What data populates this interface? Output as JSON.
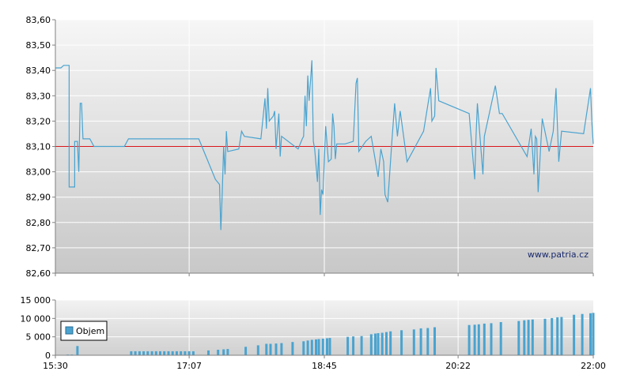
{
  "watermark": "www.patria.cz",
  "colors": {
    "price_line": "#4aa3cf",
    "reference_line": "#d9161b",
    "volume_bar": "#4aa3cf",
    "grid": "#ffffff",
    "plot_bg_top": "#f6f6f6",
    "plot_bg_bottom": "#c8c8c8"
  },
  "chart_data": [
    {
      "type": "line",
      "name": "price",
      "ylim": [
        82.6,
        83.6
      ],
      "y_ticks": [
        "82,60",
        "82,70",
        "82,80",
        "82,90",
        "83,00",
        "83,10",
        "83,20",
        "83,30",
        "83,40",
        "83,50",
        "83,60"
      ],
      "y_tick_values": [
        82.6,
        82.7,
        82.8,
        82.9,
        83.0,
        83.1,
        83.2,
        83.3,
        83.4,
        83.5,
        83.6
      ],
      "xlim_minutes": [
        930,
        1320
      ],
      "x_tick_minutes": [
        930,
        1027,
        1125,
        1222,
        1320
      ],
      "reference_value": 83.1,
      "grid": true,
      "points": [
        [
          930,
          83.41
        ],
        [
          934,
          83.41
        ],
        [
          936,
          83.42
        ],
        [
          940,
          83.42
        ],
        [
          940,
          82.94
        ],
        [
          944,
          82.94
        ],
        [
          944,
          83.12
        ],
        [
          946,
          83.12
        ],
        [
          947,
          83.0
        ],
        [
          948,
          83.27
        ],
        [
          949,
          83.27
        ],
        [
          950,
          83.13
        ],
        [
          955,
          83.13
        ],
        [
          958,
          83.1
        ],
        [
          980,
          83.1
        ],
        [
          983,
          83.13
        ],
        [
          1034,
          83.13
        ],
        [
          1046,
          82.97
        ],
        [
          1049,
          82.95
        ],
        [
          1050,
          82.77
        ],
        [
          1051,
          82.92
        ],
        [
          1052,
          83.1
        ],
        [
          1053,
          82.99
        ],
        [
          1054,
          83.16
        ],
        [
          1055,
          83.08
        ],
        [
          1063,
          83.09
        ],
        [
          1065,
          83.16
        ],
        [
          1067,
          83.14
        ],
        [
          1079,
          83.13
        ],
        [
          1082,
          83.29
        ],
        [
          1083,
          83.17
        ],
        [
          1084,
          83.33
        ],
        [
          1085,
          83.2
        ],
        [
          1088,
          83.22
        ],
        [
          1089,
          83.24
        ],
        [
          1090,
          83.09
        ],
        [
          1092,
          83.23
        ],
        [
          1093,
          83.06
        ],
        [
          1094,
          83.14
        ],
        [
          1106,
          83.09
        ],
        [
          1109,
          83.13
        ],
        [
          1110,
          83.14
        ],
        [
          1111,
          83.3
        ],
        [
          1112,
          83.18
        ],
        [
          1113,
          83.38
        ],
        [
          1114,
          83.28
        ],
        [
          1116,
          83.44
        ],
        [
          1117,
          83.12
        ],
        [
          1118,
          83.09
        ],
        [
          1120,
          82.96
        ],
        [
          1121,
          83.09
        ],
        [
          1122,
          82.83
        ],
        [
          1123,
          82.93
        ],
        [
          1124,
          82.91
        ],
        [
          1126,
          83.18
        ],
        [
          1128,
          83.04
        ],
        [
          1130,
          83.05
        ],
        [
          1131,
          83.23
        ],
        [
          1132,
          83.18
        ],
        [
          1133,
          83.05
        ],
        [
          1134,
          83.11
        ],
        [
          1136,
          83.11
        ],
        [
          1140,
          83.11
        ],
        [
          1146,
          83.12
        ],
        [
          1148,
          83.35
        ],
        [
          1149,
          83.37
        ],
        [
          1150,
          83.08
        ],
        [
          1155,
          83.12
        ],
        [
          1159,
          83.14
        ],
        [
          1164,
          82.98
        ],
        [
          1166,
          83.09
        ],
        [
          1168,
          83.04
        ],
        [
          1169,
          82.91
        ],
        [
          1171,
          82.88
        ],
        [
          1174,
          83.12
        ],
        [
          1176,
          83.27
        ],
        [
          1178,
          83.14
        ],
        [
          1180,
          83.24
        ],
        [
          1185,
          83.04
        ],
        [
          1197,
          83.16
        ],
        [
          1202,
          83.33
        ],
        [
          1203,
          83.2
        ],
        [
          1205,
          83.22
        ],
        [
          1206,
          83.41
        ],
        [
          1208,
          83.28
        ],
        [
          1230,
          83.23
        ],
        [
          1232,
          83.1
        ],
        [
          1234,
          82.97
        ],
        [
          1235,
          83.14
        ],
        [
          1236,
          83.27
        ],
        [
          1240,
          82.99
        ],
        [
          1241,
          83.14
        ],
        [
          1249,
          83.34
        ],
        [
          1252,
          83.23
        ],
        [
          1254,
          83.23
        ],
        [
          1272,
          83.06
        ],
        [
          1275,
          83.17
        ],
        [
          1277,
          82.99
        ],
        [
          1278,
          83.14
        ],
        [
          1279,
          83.13
        ],
        [
          1280,
          82.92
        ],
        [
          1283,
          83.21
        ],
        [
          1288,
          83.08
        ],
        [
          1291,
          83.16
        ],
        [
          1293,
          83.33
        ],
        [
          1295,
          83.04
        ],
        [
          1297,
          83.16
        ],
        [
          1313,
          83.15
        ],
        [
          1318,
          83.33
        ],
        [
          1319,
          83.19
        ],
        [
          1320,
          83.11
        ]
      ]
    },
    {
      "type": "bar",
      "name": "volume",
      "series_label": "Objem",
      "ylim": [
        0,
        15000
      ],
      "y_ticks": [
        "0",
        "5 000",
        "10 000",
        "15 000"
      ],
      "y_tick_values": [
        0,
        5000,
        10000,
        15000
      ],
      "x_ticks": [
        "15:30",
        "17:07",
        "18:45",
        "20:22",
        "22:00"
      ],
      "x_tick_minutes": [
        930,
        1027,
        1125,
        1222,
        1320
      ],
      "xlim_minutes": [
        930,
        1320
      ],
      "bars": [
        [
          939,
          200
        ],
        [
          942,
          200
        ],
        [
          946,
          2500
        ],
        [
          985,
          1100
        ],
        [
          988,
          1100
        ],
        [
          991,
          1100
        ],
        [
          994,
          1100
        ],
        [
          997,
          1100
        ],
        [
          1000,
          1100
        ],
        [
          1003,
          1100
        ],
        [
          1006,
          1100
        ],
        [
          1009,
          1100
        ],
        [
          1012,
          1100
        ],
        [
          1015,
          1100
        ],
        [
          1018,
          1100
        ],
        [
          1021,
          1100
        ],
        [
          1024,
          1100
        ],
        [
          1027,
          1100
        ],
        [
          1030,
          1100
        ],
        [
          1041,
          1300
        ],
        [
          1048,
          1500
        ],
        [
          1052,
          1600
        ],
        [
          1055,
          1700
        ],
        [
          1068,
          2300
        ],
        [
          1077,
          2700
        ],
        [
          1083,
          3100
        ],
        [
          1086,
          3100
        ],
        [
          1090,
          3200
        ],
        [
          1094,
          3300
        ],
        [
          1102,
          3600
        ],
        [
          1110,
          3800
        ],
        [
          1113,
          4000
        ],
        [
          1116,
          4200
        ],
        [
          1119,
          4300
        ],
        [
          1121,
          4400
        ],
        [
          1124,
          4500
        ],
        [
          1127,
          4600
        ],
        [
          1129,
          4700
        ],
        [
          1142,
          5000
        ],
        [
          1146,
          5100
        ],
        [
          1152,
          5200
        ],
        [
          1159,
          5700
        ],
        [
          1162,
          5900
        ],
        [
          1164,
          6000
        ],
        [
          1167,
          6100
        ],
        [
          1170,
          6300
        ],
        [
          1173,
          6500
        ],
        [
          1181,
          6800
        ],
        [
          1190,
          7000
        ],
        [
          1195,
          7300
        ],
        [
          1200,
          7400
        ],
        [
          1205,
          7600
        ],
        [
          1230,
          8200
        ],
        [
          1234,
          8300
        ],
        [
          1237,
          8400
        ],
        [
          1241,
          8600
        ],
        [
          1246,
          8700
        ],
        [
          1253,
          9000
        ],
        [
          1266,
          9300
        ],
        [
          1270,
          9500
        ],
        [
          1273,
          9600
        ],
        [
          1276,
          9700
        ],
        [
          1285,
          9900
        ],
        [
          1290,
          10100
        ],
        [
          1294,
          10300
        ],
        [
          1297,
          10400
        ],
        [
          1306,
          11000
        ],
        [
          1312,
          11200
        ],
        [
          1318,
          11400
        ],
        [
          1320,
          11500
        ]
      ]
    }
  ]
}
